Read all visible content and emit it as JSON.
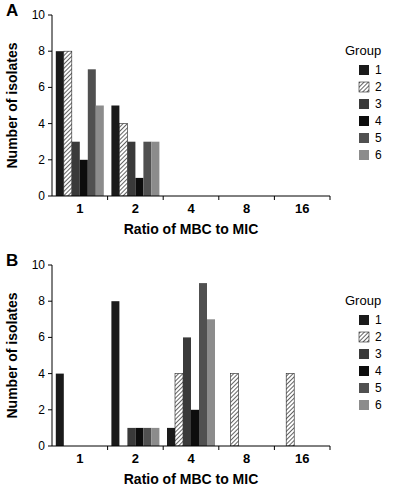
{
  "chart_data": [
    {
      "type": "bar",
      "title": "A",
      "x_label": "Ratio of MBC to MIC",
      "y_label": "Number of isolates",
      "legend_title": "Group",
      "categories": [
        "1",
        "2",
        "4",
        "8",
        "16"
      ],
      "series": [
        {
          "name": "1",
          "color": "#1a1a1a",
          "values": [
            8,
            5,
            0,
            0,
            0
          ]
        },
        {
          "name": "2",
          "color": "#ffffff",
          "line_style": "hatched",
          "values": [
            8,
            4,
            0,
            0,
            0
          ]
        },
        {
          "name": "3",
          "color": "#3a3a3a",
          "values": [
            3,
            3,
            0,
            0,
            0
          ]
        },
        {
          "name": "4",
          "color": "#0d0d0d",
          "values": [
            2,
            1,
            0,
            0,
            0
          ]
        },
        {
          "name": "5",
          "color": "#505050",
          "values": [
            7,
            3,
            0,
            0,
            0
          ]
        },
        {
          "name": "6",
          "color": "#8c8c8c",
          "values": [
            5,
            3,
            0,
            0,
            0
          ]
        }
      ],
      "ylim": [
        0,
        10
      ],
      "yticks": [
        0,
        2,
        4,
        6,
        8,
        10
      ],
      "grid": false,
      "legend": "right"
    },
    {
      "type": "bar",
      "title": "B",
      "x_label": "Ratio of MBC to MIC",
      "y_label": "Number of isolates",
      "legend_title": "Group",
      "categories": [
        "1",
        "2",
        "4",
        "8",
        "16"
      ],
      "series": [
        {
          "name": "1",
          "color": "#1a1a1a",
          "values": [
            4,
            8,
            1,
            0,
            0
          ]
        },
        {
          "name": "2",
          "color": "#ffffff",
          "line_style": "hatched",
          "values": [
            0,
            0,
            4,
            4,
            4
          ]
        },
        {
          "name": "3",
          "color": "#3a3a3a",
          "values": [
            0,
            1,
            6,
            0,
            0
          ]
        },
        {
          "name": "4",
          "color": "#0d0d0d",
          "values": [
            0,
            1,
            2,
            0,
            0
          ]
        },
        {
          "name": "5",
          "color": "#505050",
          "values": [
            0,
            1,
            9,
            0,
            0
          ]
        },
        {
          "name": "6",
          "color": "#8c8c8c",
          "values": [
            0,
            1,
            7,
            0,
            0
          ]
        }
      ],
      "ylim": [
        0,
        10
      ],
      "yticks": [
        0,
        2,
        4,
        6,
        8,
        10
      ],
      "grid": false,
      "legend": "right"
    }
  ]
}
